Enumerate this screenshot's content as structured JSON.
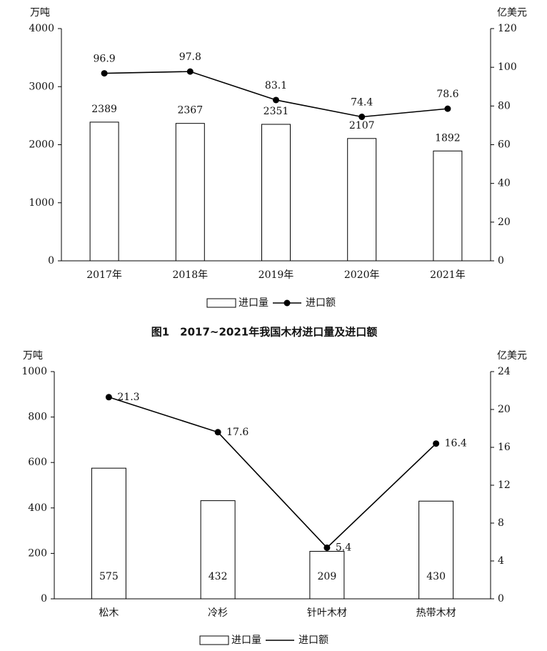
{
  "chart_data": [
    {
      "type": "bar",
      "title": "图1　2017~2021年我国木材进口量及进口额",
      "y_label": "万吨",
      "y2_label": "亿美元",
      "categories": [
        "2017年",
        "2018年",
        "2019年",
        "2020年",
        "2021年"
      ],
      "series": [
        {
          "name": "进口量",
          "type": "bar",
          "color": "#000000",
          "values": [
            2389,
            2367,
            2351,
            2107,
            1892
          ]
        },
        {
          "name": "进口额",
          "type": "line",
          "axis": "y2",
          "color": "#000000",
          "values": [
            96.9,
            97.8,
            83.1,
            74.4,
            78.6
          ]
        }
      ],
      "ylim": [
        0,
        4000
      ],
      "yticks": [
        0,
        1000,
        2000,
        3000,
        4000
      ],
      "y2lim": [
        0,
        120
      ],
      "y2ticks": [
        0,
        20,
        40,
        60,
        80,
        100,
        120
      ]
    },
    {
      "type": "bar",
      "y_label": "万吨",
      "y2_label": "亿美元",
      "categories": [
        "松木",
        "冷杉",
        "针叶木材",
        "热带木材"
      ],
      "series": [
        {
          "name": "进口量",
          "type": "bar",
          "color": "#000000",
          "values": [
            575,
            432,
            209,
            430
          ]
        },
        {
          "name": "进口额",
          "type": "line",
          "axis": "y2",
          "color": "#000000",
          "values": [
            21.3,
            17.6,
            5.4,
            16.4
          ]
        }
      ],
      "ylim": [
        0,
        1000
      ],
      "yticks": [
        0,
        200,
        400,
        600,
        800,
        1000
      ],
      "y2lim": [
        0,
        24
      ],
      "y2ticks": [
        0,
        4,
        8,
        12,
        16,
        20,
        24
      ]
    }
  ]
}
